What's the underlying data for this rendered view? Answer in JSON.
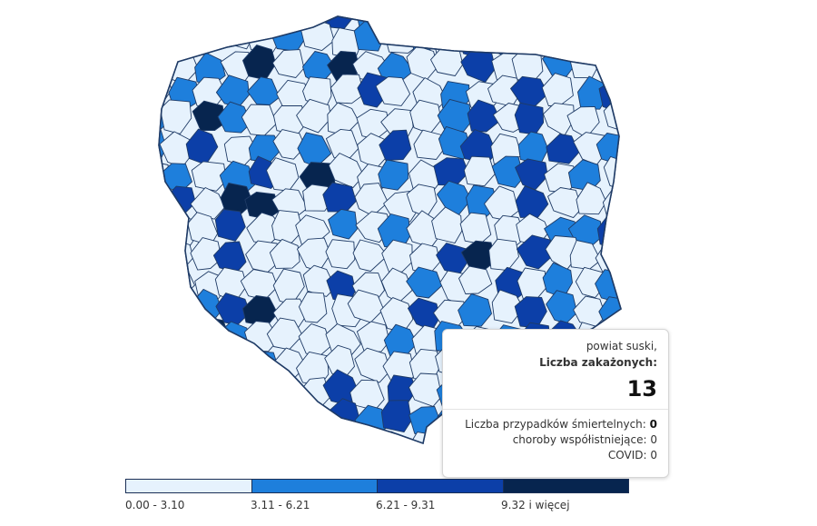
{
  "map": {
    "colors": [
      "#e6f2fd",
      "#1e7fdc",
      "#0c3fa8",
      "#07254f"
    ],
    "border_color": "#1f3b66"
  },
  "tooltip": {
    "region_name": "powiat suski,",
    "metric_label": "Liczba zakażonych:",
    "metric_value": "13",
    "deaths_label": "Liczba przypadków śmiertelnych:",
    "deaths_value": "0",
    "comorbid_label": "choroby współistniejące: 0",
    "covid_label": "COVID: 0"
  },
  "legend": {
    "classes": [
      {
        "label": "0.00 - 3.10",
        "color": "#e6f2fd"
      },
      {
        "label": "3.11 - 6.21",
        "color": "#1e7fdc"
      },
      {
        "label": "6.21 - 9.31",
        "color": "#0c3fa8"
      },
      {
        "label": "9.32 i więcej",
        "color": "#07254f"
      }
    ]
  }
}
